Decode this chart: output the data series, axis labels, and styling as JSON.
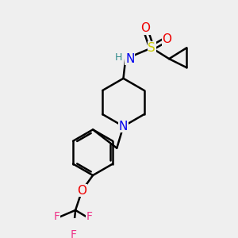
{
  "bg_color": "#efefef",
  "bond_color": "#000000",
  "bond_lw": 1.8,
  "atom_colors": {
    "N": "#0000ee",
    "O": "#ee0000",
    "S": "#cccc00",
    "F": "#ee3388",
    "H": "#2e8b8b",
    "C": "#000000"
  },
  "font_size": 10,
  "fig_size": [
    3.0,
    3.0
  ],
  "dpi": 100
}
